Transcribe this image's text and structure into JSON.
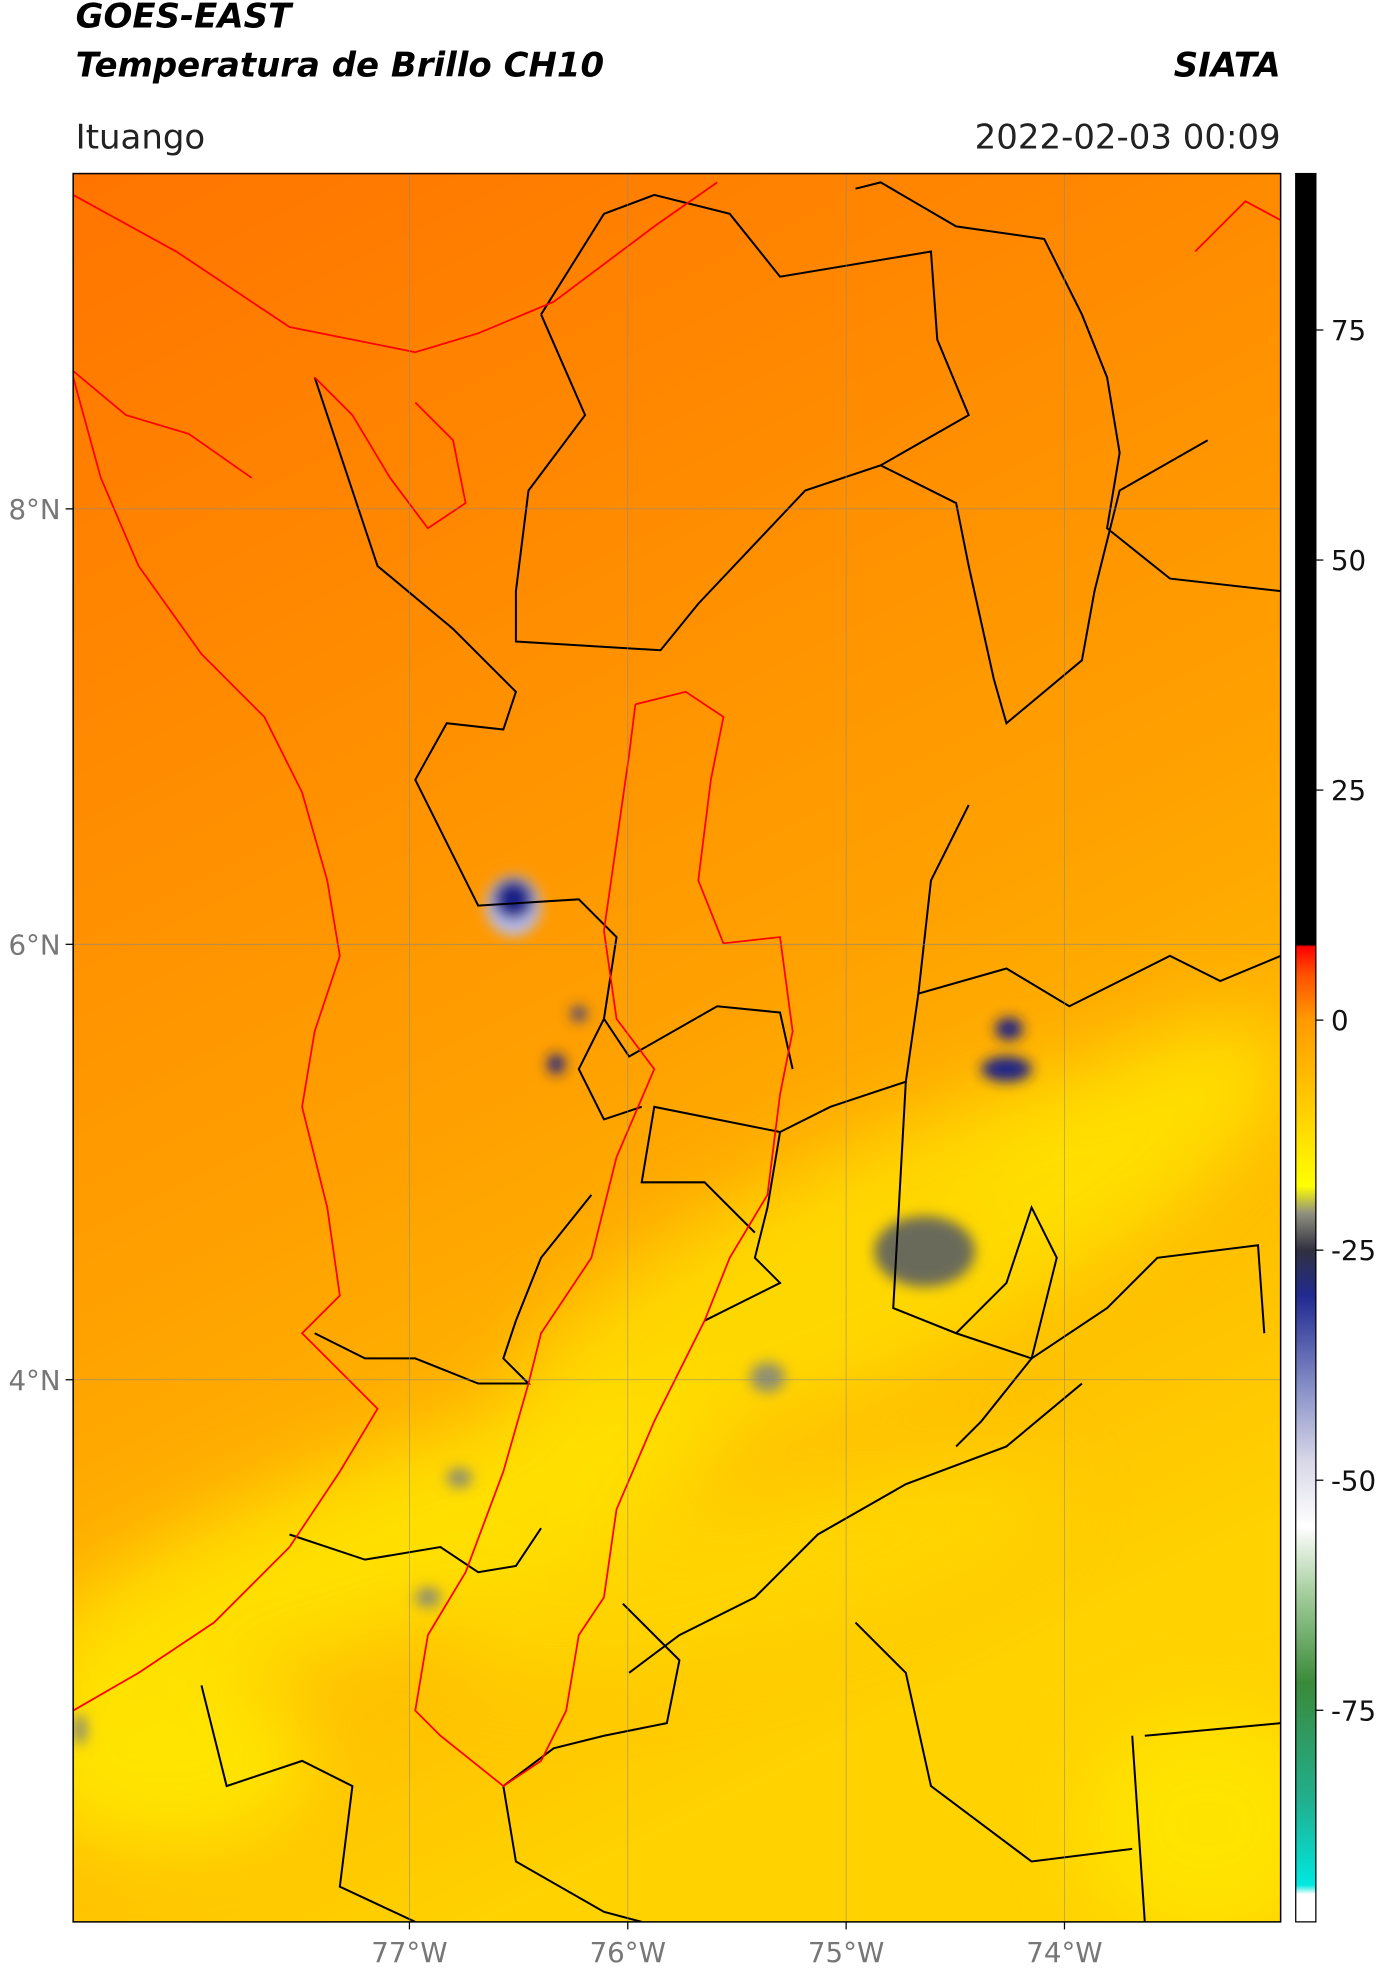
{
  "header": {
    "title": "GOES-EAST",
    "subtitle": "Temperatura de Brillo CH10",
    "source": "SIATA",
    "location": "Ituango",
    "datetime": "2022-02-03 00:09"
  },
  "map": {
    "xlim": [
      -78.54,
      -73.01
    ],
    "ylim": [
      1.51,
      9.54
    ],
    "xticks": [
      {
        "value": -77,
        "label": "77°W"
      },
      {
        "value": -76,
        "label": "76°W"
      },
      {
        "value": -75,
        "label": "75°W"
      },
      {
        "value": -74,
        "label": "74°W"
      }
    ],
    "yticks": [
      {
        "value": 4,
        "label": "4°N"
      },
      {
        "value": 6,
        "label": "6°N"
      },
      {
        "value": 8,
        "label": "8°N"
      }
    ],
    "grid": true
  },
  "colorbar": {
    "lim": [
      -98,
      92
    ],
    "ticks": [
      -75,
      -50,
      -25,
      0,
      25,
      50,
      75
    ],
    "stops": [
      {
        "value": -98,
        "color": "#ffffff"
      },
      {
        "value": -95,
        "color": "#ffffff"
      },
      {
        "value": -94,
        "color": "#00e8e0"
      },
      {
        "value": -85,
        "color": "#20b090"
      },
      {
        "value": -72,
        "color": "#3a8a3a"
      },
      {
        "value": -62,
        "color": "#a8d0a0"
      },
      {
        "value": -55,
        "color": "#ffffff"
      },
      {
        "value": -48,
        "color": "#d8d8e8"
      },
      {
        "value": -40,
        "color": "#8890c8"
      },
      {
        "value": -30,
        "color": "#202a90"
      },
      {
        "value": -25,
        "color": "#303040"
      },
      {
        "value": -21,
        "color": "#909080"
      },
      {
        "value": -18,
        "color": "#ffff00"
      },
      {
        "value": -10,
        "color": "#ffd000"
      },
      {
        "value": 0,
        "color": "#ff9a00"
      },
      {
        "value": 5,
        "color": "#ff5000"
      },
      {
        "value": 8,
        "color": "#ff0000"
      },
      {
        "value": 8.2,
        "color": "#000000"
      },
      {
        "value": 92,
        "color": "#000000"
      }
    ]
  }
}
